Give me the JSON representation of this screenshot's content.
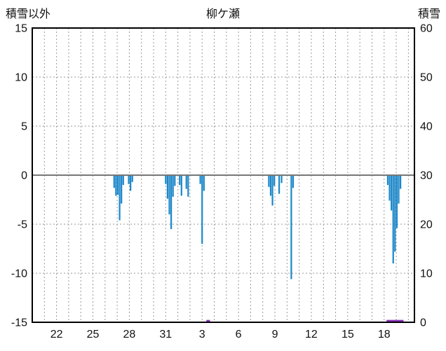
{
  "chart_data": {
    "type": "bar",
    "title": "柳ケ瀬",
    "top_left_label": "積雪以外",
    "top_right_label": "積雪",
    "colors": {
      "bar": "#1b87c9",
      "snow": "#8a2fb8",
      "grid": "#999999",
      "zero_line": "#777777",
      "frame": "#000000",
      "text": "#111111"
    },
    "left_axis": {
      "label": "積雪以外",
      "min": -15,
      "max": 15,
      "ticks": [
        {
          "v": 15,
          "label": "15"
        },
        {
          "v": 10,
          "label": "10"
        },
        {
          "v": 5,
          "label": "5"
        },
        {
          "v": 0,
          "label": "0"
        },
        {
          "v": -5,
          "label": "-5"
        },
        {
          "v": -10,
          "label": "-10"
        },
        {
          "v": -15,
          "label": "-15"
        }
      ]
    },
    "right_axis": {
      "label": "積雪",
      "min": 0,
      "max": 60,
      "ticks": [
        {
          "v": 60,
          "label": "60"
        },
        {
          "v": 50,
          "label": "50"
        },
        {
          "v": 40,
          "label": "40"
        },
        {
          "v": 30,
          "label": "30"
        },
        {
          "v": 20,
          "label": "20"
        },
        {
          "v": 10,
          "label": "10"
        },
        {
          "v": 0,
          "label": "0"
        }
      ]
    },
    "x_axis": {
      "domain": [
        0,
        31.5
      ],
      "grid_step": 1,
      "ticks": [
        {
          "pos": 2,
          "label": "22"
        },
        {
          "pos": 5,
          "label": "25"
        },
        {
          "pos": 8,
          "label": "28"
        },
        {
          "pos": 11,
          "label": "31"
        },
        {
          "pos": 14,
          "label": "3"
        },
        {
          "pos": 17,
          "label": "6"
        },
        {
          "pos": 20,
          "label": "9"
        },
        {
          "pos": 23,
          "label": "12"
        },
        {
          "pos": 26,
          "label": "15"
        },
        {
          "pos": 29,
          "label": "18"
        }
      ]
    },
    "series": [
      {
        "name": "hourly-values-bars",
        "type": "bar",
        "axis": "left",
        "color_key": "bar",
        "points": [
          [
            6.75,
            -1.3
          ],
          [
            6.9,
            -2.1
          ],
          [
            7.05,
            -2.0
          ],
          [
            7.2,
            -4.6
          ],
          [
            7.35,
            -2.9
          ],
          [
            7.5,
            -1.0
          ],
          [
            7.95,
            -0.9
          ],
          [
            8.1,
            -1.6
          ],
          [
            8.25,
            -0.7
          ],
          [
            11.0,
            -0.9
          ],
          [
            11.15,
            -2.4
          ],
          [
            11.3,
            -4.0
          ],
          [
            11.45,
            -5.5
          ],
          [
            11.6,
            -2.2
          ],
          [
            11.75,
            -1.1
          ],
          [
            12.15,
            -1.0
          ],
          [
            12.3,
            -2.1
          ],
          [
            12.7,
            -1.4
          ],
          [
            12.85,
            -2.2
          ],
          [
            13.85,
            -0.9
          ],
          [
            14.0,
            -7.0
          ],
          [
            14.15,
            -1.6
          ],
          [
            19.5,
            -1.2
          ],
          [
            19.65,
            -2.1
          ],
          [
            19.8,
            -3.1
          ],
          [
            19.95,
            -1.1
          ],
          [
            20.35,
            -1.9
          ],
          [
            20.55,
            -0.8
          ],
          [
            21.35,
            -10.6
          ],
          [
            21.5,
            -1.3
          ],
          [
            29.3,
            -1.0
          ],
          [
            29.45,
            -2.6
          ],
          [
            29.6,
            -3.6
          ],
          [
            29.75,
            -9.0
          ],
          [
            29.9,
            -7.8
          ],
          [
            30.05,
            -5.4
          ],
          [
            30.2,
            -2.9
          ],
          [
            30.35,
            -1.4
          ]
        ]
      },
      {
        "name": "snow-depth-line",
        "type": "line",
        "axis": "right",
        "color_key": "snow",
        "segments": [
          [
            [
              14.35,
              0.3
            ],
            [
              14.65,
              0.3
            ]
          ],
          [
            [
              29.2,
              0.3
            ],
            [
              30.6,
              0.3
            ]
          ]
        ]
      }
    ]
  }
}
